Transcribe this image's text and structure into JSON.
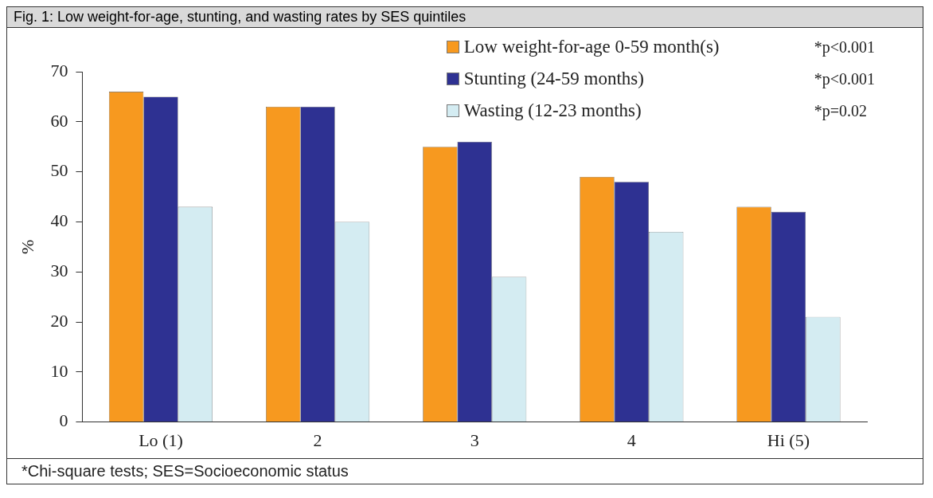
{
  "chart_data": {
    "type": "bar",
    "title": "Fig. 1: Low weight-for-age, stunting, and wasting rates by SES quintiles",
    "ylabel": "%",
    "categories": [
      "Lo (1)",
      "2",
      "3",
      "4",
      "Hi (5)"
    ],
    "series": [
      {
        "name": "Low weight-for-age 0-59 month(s)",
        "color": "#f7991f",
        "values": [
          66,
          63,
          55,
          49,
          43
        ]
      },
      {
        "name": "Stunting (24-59 months)",
        "color": "#2e3192",
        "values": [
          65,
          63,
          56,
          48,
          42
        ]
      },
      {
        "name": "Wasting (12-23 months)",
        "color": "#d4ecf2",
        "values": [
          43,
          40,
          29,
          38,
          21
        ]
      }
    ],
    "ylim": [
      0,
      70
    ],
    "yticks": [
      0,
      10,
      20,
      30,
      40,
      50,
      60,
      70
    ],
    "grid": false,
    "legend": "top right",
    "annotations": [
      "*p<0.001",
      "*p<0.001",
      "*p=0.02",
      "*Chi-square tests; SES=Socioeconomic status"
    ]
  }
}
